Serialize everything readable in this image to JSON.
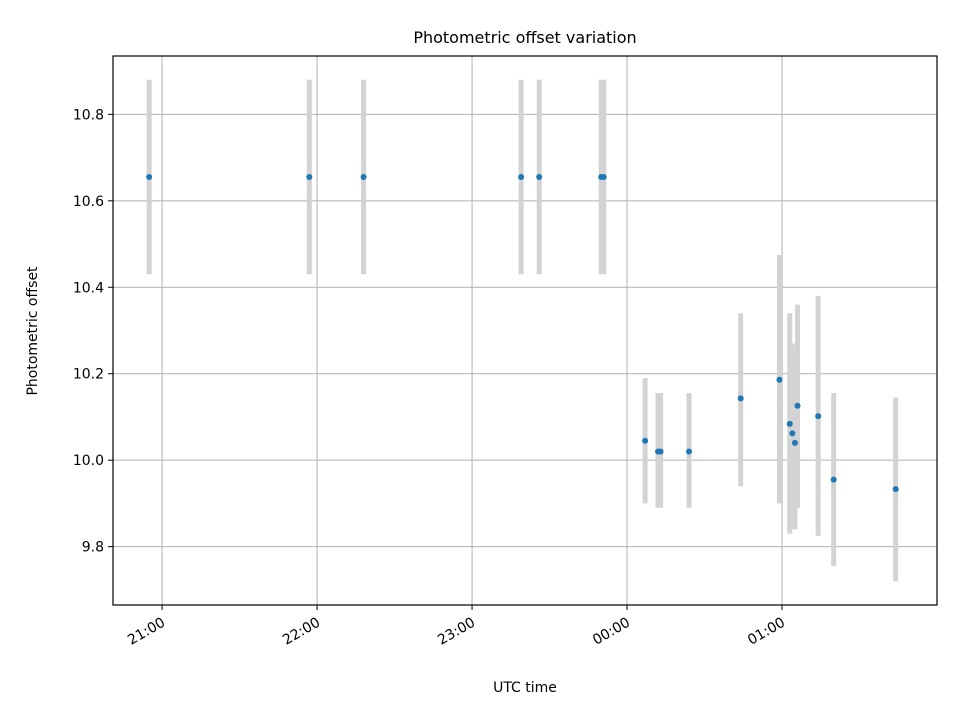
{
  "chart_data": {
    "type": "scatter",
    "title": "Photometric offset variation",
    "xlabel": "UTC time",
    "ylabel": "Photometric offset",
    "x_unit": "UTC time (HH:MM)",
    "xlim": [
      "20:41",
      "02:00"
    ],
    "ylim": [
      9.665,
      10.935
    ],
    "x_ticks": [
      "21:00",
      "22:00",
      "23:00",
      "00:00",
      "01:00"
    ],
    "y_ticks": [
      "9.8",
      "10.0",
      "10.2",
      "10.4",
      "10.6",
      "10.8"
    ],
    "grid": true,
    "legend": "none",
    "series": [
      {
        "marker_color": "#1f77b4",
        "errorbar_color": "#d3d3d3",
        "points": [
          {
            "time": "20:55",
            "offset": 10.655,
            "low": 10.43,
            "high": 10.88
          },
          {
            "time": "21:57",
            "offset": 10.655,
            "low": 10.43,
            "high": 10.88
          },
          {
            "time": "22:18",
            "offset": 10.655,
            "low": 10.43,
            "high": 10.88
          },
          {
            "time": "23:19",
            "offset": 10.655,
            "low": 10.43,
            "high": 10.88
          },
          {
            "time": "23:26",
            "offset": 10.655,
            "low": 10.43,
            "high": 10.88
          },
          {
            "time": "23:50",
            "offset": 10.655,
            "low": 10.43,
            "high": 10.88
          },
          {
            "time": "23:51",
            "offset": 10.655,
            "low": 10.43,
            "high": 10.88
          },
          {
            "time": "00:07",
            "offset": 10.045,
            "low": 9.9,
            "high": 10.19
          },
          {
            "time": "00:12",
            "offset": 10.02,
            "low": 9.89,
            "high": 10.155
          },
          {
            "time": "00:13",
            "offset": 10.02,
            "low": 9.89,
            "high": 10.155
          },
          {
            "time": "00:24",
            "offset": 10.02,
            "low": 9.89,
            "high": 10.155
          },
          {
            "time": "00:44",
            "offset": 10.143,
            "low": 9.94,
            "high": 10.34
          },
          {
            "time": "00:59",
            "offset": 10.186,
            "low": 9.9,
            "high": 10.475
          },
          {
            "time": "01:03",
            "offset": 10.084,
            "low": 9.83,
            "high": 10.34
          },
          {
            "time": "01:04",
            "offset": 10.062,
            "low": 9.85,
            "high": 10.27
          },
          {
            "time": "01:05",
            "offset": 10.04,
            "low": 9.84,
            "high": 10.24
          },
          {
            "time": "01:06",
            "offset": 10.126,
            "low": 9.89,
            "high": 10.36
          },
          {
            "time": "01:14",
            "offset": 10.102,
            "low": 9.825,
            "high": 10.38
          },
          {
            "time": "01:20",
            "offset": 9.955,
            "low": 9.755,
            "high": 10.155
          },
          {
            "time": "01:44",
            "offset": 9.933,
            "low": 9.72,
            "high": 10.145
          }
        ]
      }
    ]
  }
}
